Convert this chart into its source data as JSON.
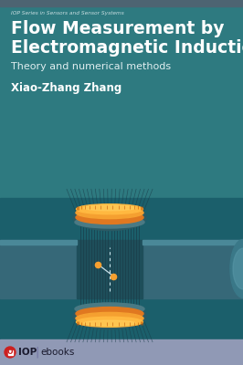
{
  "bg_top_color": "#2e7a80",
  "bg_bottom_color": "#1b5f6b",
  "footer_color": "#9099b5",
  "top_bar_color": "#4d6472",
  "title_line1": "Flow Measurement by",
  "title_line2": "Electromagnetic Induction",
  "subtitle": "Theory and numerical methods",
  "author": "Xiao-Zhang Zhang",
  "series": "IOP Series in Sensors and Sensor Systems",
  "title_color": "#ffffff",
  "subtitle_color": "#e0eef0",
  "author_color": "#ffffff",
  "series_color": "#c8dde0",
  "orange_dark": "#c96010",
  "orange_mid": "#e07820",
  "orange_light": "#f5a030",
  "orange_bright": "#ffb840",
  "coil_base_color": "#4a7a84",
  "coil_shadow": "#2a5a64",
  "pipe_color": "#2e6e7a",
  "pipe_left_color": "#366878",
  "pipe_highlight": "#4a8898",
  "center_pipe_color": "#1e4e5a",
  "field_line_color": "#1a3d4a",
  "pipe_end_color": "#3a7888",
  "pipe_end_highlight": "#5a9aaa"
}
